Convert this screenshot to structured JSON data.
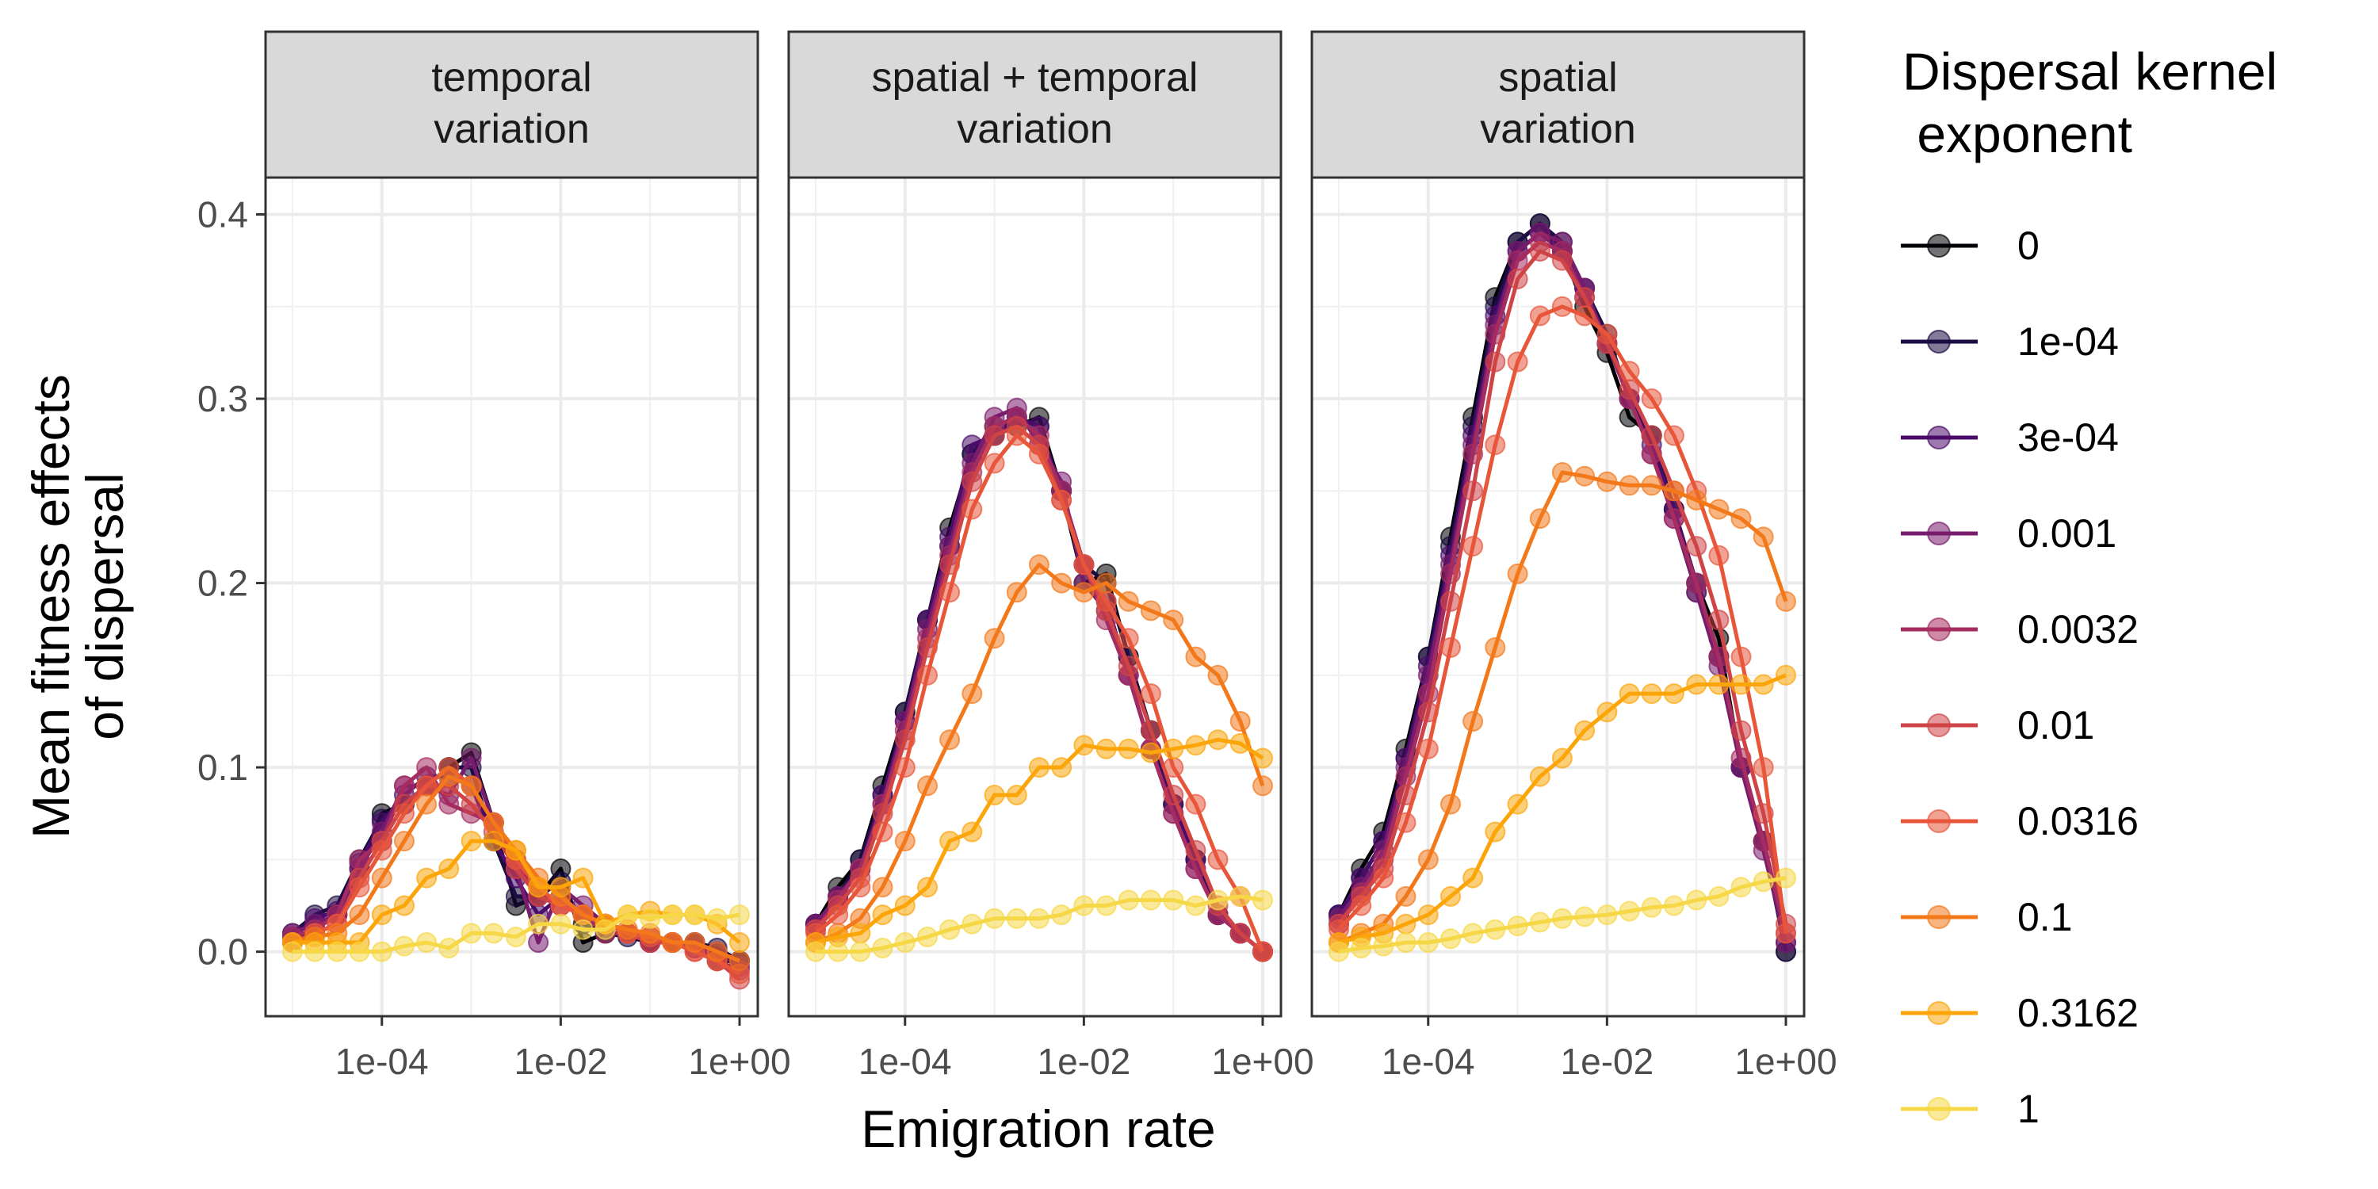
{
  "chart_data": {
    "type": "line",
    "x_scale": "log10",
    "xlabel": "Emigration rate",
    "ylabel": [
      "Mean fitness effects",
      "of dispersal"
    ],
    "xlim": [
      5e-06,
      1.6
    ],
    "ylim": [
      -0.035,
      0.42
    ],
    "x_ticks": [
      {
        "value": 0.0001,
        "label": "1e-04"
      },
      {
        "value": 0.01,
        "label": "1e-02"
      },
      {
        "value": 1,
        "label": "1e+00"
      }
    ],
    "y_ticks": [
      {
        "value": 0.0,
        "label": "0.0"
      },
      {
        "value": 0.1,
        "label": "0.1"
      },
      {
        "value": 0.2,
        "label": "0.2"
      },
      {
        "value": 0.3,
        "label": "0.3"
      },
      {
        "value": 0.4,
        "label": "0.4"
      }
    ],
    "grid": true,
    "legend": {
      "title": [
        "Dispersal kernel",
        " exponent"
      ],
      "position": "right",
      "entries": [
        {
          "label": "0",
          "color": "#000004"
        },
        {
          "label": "1e-04",
          "color": "#1B0C41"
        },
        {
          "label": "3e-04",
          "color": "#4A0C6B"
        },
        {
          "label": "0.001",
          "color": "#781C6D"
        },
        {
          "label": "0.0032",
          "color": "#A52C60"
        },
        {
          "label": "0.01",
          "color": "#CF4446"
        },
        {
          "label": "0.0316",
          "color": "#E8563A"
        },
        {
          "label": "0.1",
          "color": "#F37819"
        },
        {
          "label": "0.3162",
          "color": "#FCA50A"
        },
        {
          "label": "1",
          "color": "#F6D746"
        }
      ]
    },
    "x": [
      1e-05,
      1.78e-05,
      3.16e-05,
      5.62e-05,
      0.0001,
      0.000178,
      0.000316,
      0.000562,
      0.001,
      0.00178,
      0.00316,
      0.00562,
      0.01,
      0.0178,
      0.0316,
      0.0562,
      0.1,
      0.178,
      0.316,
      0.562,
      1
    ],
    "panels": [
      {
        "strip": [
          "temporal",
          "variation"
        ],
        "series": [
          {
            "name": "0",
            "values": [
              0.005,
              0.012,
              0.02,
              0.045,
              0.075,
              0.08,
              0.09,
              0.1,
              0.108,
              0.07,
              0.025,
              0.03,
              0.045,
              0.005,
              0.01,
              0.01,
              0.005,
              0.005,
              0.005,
              -0.005,
              -0.005
            ]
          },
          {
            "name": "1e-04",
            "values": [
              0.01,
              0.02,
              0.025,
              0.05,
              0.072,
              0.08,
              0.09,
              0.1,
              0.1,
              0.06,
              0.03,
              0.03,
              0.038,
              0.015,
              0.01,
              0.008,
              0.005,
              0.005,
              0.005,
              0.002,
              -0.005
            ]
          },
          {
            "name": "3e-04",
            "values": [
              0.008,
              0.018,
              0.022,
              0.048,
              0.07,
              0.085,
              0.095,
              0.095,
              0.09,
              0.06,
              0.04,
              0.02,
              0.03,
              0.02,
              0.015,
              0.01,
              0.005,
              0.005,
              0.002,
              0.0,
              -0.005
            ]
          },
          {
            "name": "0.001",
            "values": [
              0.01,
              0.015,
              0.02,
              0.045,
              0.065,
              0.09,
              0.09,
              0.085,
              0.105,
              0.07,
              0.045,
              0.005,
              0.035,
              0.025,
              0.015,
              0.01,
              0.008,
              0.005,
              0.002,
              0.0,
              -0.008
            ]
          },
          {
            "name": "0.0032",
            "values": [
              0.008,
              0.012,
              0.02,
              0.05,
              0.06,
              0.09,
              0.1,
              0.08,
              0.075,
              0.07,
              0.05,
              0.03,
              0.025,
              0.02,
              0.01,
              0.01,
              0.005,
              0.005,
              0.005,
              -0.005,
              -0.01
            ]
          },
          {
            "name": "0.01",
            "values": [
              0.005,
              0.01,
              0.015,
              0.04,
              0.06,
              0.08,
              0.09,
              0.09,
              0.08,
              0.065,
              0.045,
              0.03,
              0.025,
              0.02,
              0.015,
              0.01,
              0.005,
              0.005,
              0.0,
              -0.005,
              -0.015
            ]
          },
          {
            "name": "0.0316",
            "values": [
              0.005,
              0.01,
              0.015,
              0.035,
              0.055,
              0.075,
              0.09,
              0.1,
              0.09,
              0.07,
              0.05,
              0.035,
              0.025,
              0.02,
              0.015,
              0.01,
              0.008,
              0.005,
              0.0,
              -0.005,
              -0.012
            ]
          },
          {
            "name": "0.1",
            "values": [
              0.005,
              0.008,
              0.01,
              0.02,
              0.04,
              0.06,
              0.08,
              0.095,
              0.09,
              0.07,
              0.055,
              0.04,
              0.03,
              0.02,
              0.015,
              0.012,
              0.01,
              0.005,
              0.005,
              0.0,
              -0.005
            ]
          },
          {
            "name": "0.3162",
            "values": [
              0.005,
              0.005,
              0.005,
              0.005,
              0.02,
              0.025,
              0.04,
              0.045,
              0.06,
              0.06,
              0.055,
              0.035,
              0.035,
              0.04,
              0.015,
              0.02,
              0.022,
              0.02,
              0.02,
              0.015,
              0.005
            ]
          },
          {
            "name": "1",
            "values": [
              0.0,
              0.0,
              0.0,
              0.0,
              0.0,
              0.003,
              0.005,
              0.002,
              0.01,
              0.01,
              0.008,
              0.015,
              0.015,
              0.012,
              0.012,
              0.02,
              0.018,
              0.02,
              0.02,
              0.018,
              0.02
            ]
          }
        ]
      },
      {
        "strip": [
          "spatial + temporal",
          "variation"
        ],
        "series": [
          {
            "name": "0",
            "values": [
              0.015,
              0.035,
              0.05,
              0.09,
              0.13,
              0.18,
              0.23,
              0.27,
              0.28,
              0.285,
              0.29,
              0.25,
              0.2,
              0.205,
              0.16,
              0.12,
              0.08,
              0.05,
              0.02,
              0.01,
              0.0
            ]
          },
          {
            "name": "1e-04",
            "values": [
              0.015,
              0.03,
              0.05,
              0.085,
              0.13,
              0.18,
              0.22,
              0.27,
              0.285,
              0.29,
              0.285,
              0.25,
              0.21,
              0.2,
              0.16,
              0.12,
              0.08,
              0.05,
              0.02,
              0.01,
              0.0
            ]
          },
          {
            "name": "3e-04",
            "values": [
              0.015,
              0.03,
              0.045,
              0.085,
              0.125,
              0.18,
              0.225,
              0.275,
              0.28,
              0.29,
              0.285,
              0.25,
              0.21,
              0.19,
              0.15,
              0.11,
              0.08,
              0.05,
              0.02,
              0.01,
              0.0
            ]
          },
          {
            "name": "0.001",
            "values": [
              0.015,
              0.03,
              0.045,
              0.08,
              0.125,
              0.175,
              0.22,
              0.265,
              0.29,
              0.295,
              0.275,
              0.255,
              0.2,
              0.185,
              0.15,
              0.11,
              0.075,
              0.045,
              0.02,
              0.01,
              0.0
            ]
          },
          {
            "name": "0.0032",
            "values": [
              0.012,
              0.028,
              0.045,
              0.08,
              0.12,
              0.17,
              0.215,
              0.26,
              0.285,
              0.29,
              0.28,
              0.25,
              0.21,
              0.18,
              0.15,
              0.11,
              0.075,
              0.045,
              0.02,
              0.01,
              0.0
            ]
          },
          {
            "name": "0.01",
            "values": [
              0.012,
              0.025,
              0.04,
              0.075,
              0.115,
              0.165,
              0.21,
              0.255,
              0.28,
              0.285,
              0.275,
              0.245,
              0.21,
              0.185,
              0.155,
              0.12,
              0.085,
              0.055,
              0.025,
              0.01,
              0.0
            ]
          },
          {
            "name": "0.0316",
            "values": [
              0.01,
              0.02,
              0.035,
              0.065,
              0.1,
              0.15,
              0.195,
              0.24,
              0.265,
              0.28,
              0.27,
              0.245,
              0.21,
              0.19,
              0.17,
              0.14,
              0.1,
              0.08,
              0.05,
              0.03,
              0.0
            ]
          },
          {
            "name": "0.1",
            "values": [
              0.005,
              0.01,
              0.018,
              0.035,
              0.06,
              0.09,
              0.115,
              0.14,
              0.17,
              0.195,
              0.21,
              0.2,
              0.195,
              0.2,
              0.19,
              0.185,
              0.18,
              0.16,
              0.15,
              0.125,
              0.09
            ]
          },
          {
            "name": "0.3162",
            "values": [
              0.005,
              0.008,
              0.01,
              0.02,
              0.025,
              0.035,
              0.06,
              0.065,
              0.085,
              0.085,
              0.1,
              0.1,
              0.112,
              0.11,
              0.11,
              0.108,
              0.11,
              0.112,
              0.115,
              0.113,
              0.105
            ]
          },
          {
            "name": "1",
            "values": [
              0.0,
              0.0,
              0.0,
              0.002,
              0.005,
              0.008,
              0.012,
              0.015,
              0.018,
              0.018,
              0.018,
              0.02,
              0.025,
              0.025,
              0.028,
              0.028,
              0.028,
              0.025,
              0.028,
              0.03,
              0.028
            ]
          }
        ]
      },
      {
        "strip": [
          "spatial",
          "variation"
        ],
        "series": [
          {
            "name": "0",
            "values": [
              0.02,
              0.045,
              0.065,
              0.11,
              0.16,
              0.225,
              0.29,
              0.355,
              0.385,
              0.395,
              0.38,
              0.35,
              0.325,
              0.29,
              0.28,
              0.24,
              0.2,
              0.17,
              0.1,
              0.06,
              0.0
            ]
          },
          {
            "name": "1e-04",
            "values": [
              0.02,
              0.04,
              0.06,
              0.105,
              0.16,
              0.22,
              0.285,
              0.35,
              0.385,
              0.395,
              0.385,
              0.36,
              0.335,
              0.3,
              0.28,
              0.24,
              0.195,
              0.16,
              0.1,
              0.06,
              0.0
            ]
          },
          {
            "name": "3e-04",
            "values": [
              0.02,
              0.04,
              0.06,
              0.105,
              0.155,
              0.215,
              0.28,
              0.345,
              0.38,
              0.39,
              0.38,
              0.36,
              0.33,
              0.3,
              0.275,
              0.24,
              0.2,
              0.16,
              0.1,
              0.06,
              0.005
            ]
          },
          {
            "name": "0.001",
            "values": [
              0.018,
              0.035,
              0.055,
              0.1,
              0.15,
              0.21,
              0.275,
              0.34,
              0.38,
              0.39,
              0.385,
              0.36,
              0.33,
              0.3,
              0.27,
              0.235,
              0.195,
              0.155,
              0.1,
              0.055,
              0.005
            ]
          },
          {
            "name": "0.0032",
            "values": [
              0.015,
              0.032,
              0.05,
              0.095,
              0.14,
              0.205,
              0.27,
              0.335,
              0.375,
              0.385,
              0.38,
              0.355,
              0.33,
              0.3,
              0.27,
              0.235,
              0.2,
              0.16,
              0.105,
              0.06,
              0.01
            ]
          },
          {
            "name": "0.01",
            "values": [
              0.015,
              0.03,
              0.045,
              0.085,
              0.13,
              0.19,
              0.25,
              0.32,
              0.365,
              0.38,
              0.375,
              0.355,
              0.33,
              0.305,
              0.28,
              0.25,
              0.22,
              0.18,
              0.12,
              0.075,
              0.015
            ]
          },
          {
            "name": "0.0316",
            "values": [
              0.012,
              0.025,
              0.04,
              0.07,
              0.11,
              0.165,
              0.22,
              0.275,
              0.32,
              0.345,
              0.35,
              0.345,
              0.335,
              0.315,
              0.3,
              0.28,
              0.25,
              0.215,
              0.16,
              0.1,
              0.01
            ]
          },
          {
            "name": "0.1",
            "values": [
              0.005,
              0.01,
              0.015,
              0.03,
              0.05,
              0.08,
              0.125,
              0.165,
              0.205,
              0.235,
              0.26,
              0.258,
              0.255,
              0.253,
              0.253,
              0.25,
              0.245,
              0.24,
              0.235,
              0.225,
              0.19
            ]
          },
          {
            "name": "0.3162",
            "values": [
              0.005,
              0.008,
              0.01,
              0.015,
              0.02,
              0.03,
              0.04,
              0.065,
              0.08,
              0.095,
              0.105,
              0.12,
              0.13,
              0.14,
              0.14,
              0.14,
              0.145,
              0.145,
              0.145,
              0.145,
              0.15
            ]
          },
          {
            "name": "1",
            "values": [
              0.0,
              0.002,
              0.003,
              0.005,
              0.005,
              0.007,
              0.01,
              0.012,
              0.014,
              0.016,
              0.018,
              0.019,
              0.02,
              0.022,
              0.024,
              0.025,
              0.028,
              0.03,
              0.035,
              0.038,
              0.04
            ]
          }
        ]
      }
    ]
  }
}
